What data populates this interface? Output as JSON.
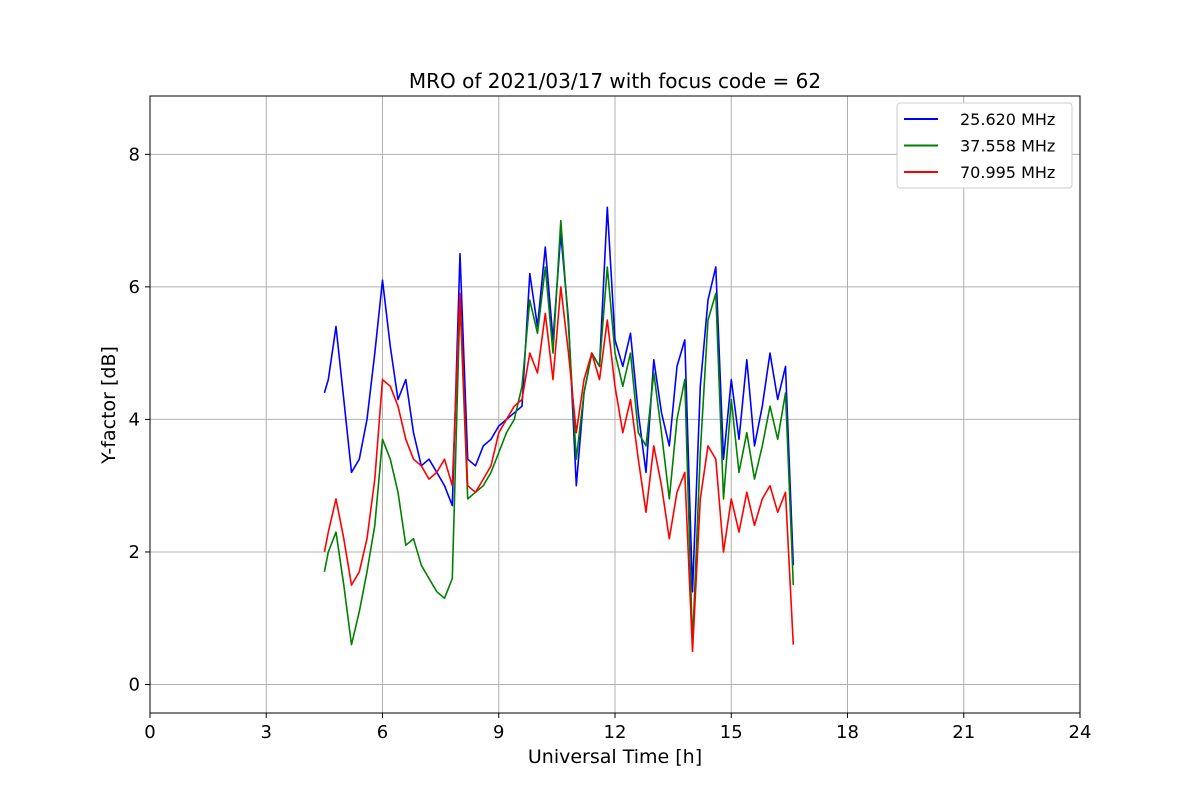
{
  "chart_data": {
    "type": "line",
    "title": "MRO of 2021/03/17 with focus code = 62",
    "xlabel": "Universal Time [h]",
    "ylabel": "Y-factor [dB]",
    "xlim": [
      0,
      24
    ],
    "ylim": [
      -0.43,
      8.88
    ],
    "xticks": [
      0,
      3,
      6,
      9,
      12,
      15,
      18,
      21,
      24
    ],
    "yticks": [
      0,
      2,
      4,
      6,
      8
    ],
    "grid": true,
    "legend_position": "top-right",
    "series": [
      {
        "name": "25.620 MHz",
        "color": "#0000ff",
        "x": [
          4.5,
          4.6,
          4.8,
          5.0,
          5.2,
          5.4,
          5.6,
          5.8,
          6.0,
          6.2,
          6.4,
          6.6,
          6.8,
          7.0,
          7.2,
          7.4,
          7.6,
          7.8,
          8.0,
          8.2,
          8.4,
          8.6,
          8.8,
          9.0,
          9.2,
          9.4,
          9.6,
          9.8,
          10.0,
          10.2,
          10.4,
          10.6,
          10.8,
          11.0,
          11.2,
          11.4,
          11.6,
          11.8,
          12.0,
          12.2,
          12.4,
          12.6,
          12.8,
          13.0,
          13.2,
          13.4,
          13.6,
          13.8,
          14.0,
          14.2,
          14.4,
          14.6,
          14.8,
          15.0,
          15.2,
          15.4,
          15.6,
          15.8,
          16.0,
          16.2,
          16.4,
          16.6
        ],
        "y": [
          4.4,
          4.6,
          5.4,
          4.3,
          3.2,
          3.4,
          4.0,
          5.0,
          6.1,
          5.1,
          4.3,
          4.6,
          3.8,
          3.3,
          3.4,
          3.2,
          3.0,
          2.7,
          6.5,
          3.4,
          3.3,
          3.6,
          3.7,
          3.9,
          4.0,
          4.1,
          4.2,
          6.2,
          5.4,
          6.6,
          5.2,
          6.8,
          5.5,
          3.0,
          4.4,
          5.0,
          4.8,
          7.2,
          5.2,
          4.8,
          5.3,
          4.1,
          3.2,
          4.9,
          4.1,
          3.6,
          4.8,
          5.2,
          1.4,
          4.5,
          5.8,
          6.3,
          3.4,
          4.6,
          3.7,
          4.9,
          3.6,
          4.2,
          5.0,
          4.3,
          4.8,
          1.8
        ]
      },
      {
        "name": "37.558 MHz",
        "color": "#008000",
        "x": [
          4.5,
          4.6,
          4.8,
          5.0,
          5.2,
          5.4,
          5.6,
          5.8,
          6.0,
          6.2,
          6.4,
          6.6,
          6.8,
          7.0,
          7.2,
          7.4,
          7.6,
          7.8,
          8.0,
          8.2,
          8.4,
          8.6,
          8.8,
          9.0,
          9.2,
          9.4,
          9.6,
          9.8,
          10.0,
          10.2,
          10.4,
          10.6,
          10.8,
          11.0,
          11.2,
          11.4,
          11.6,
          11.8,
          12.0,
          12.2,
          12.4,
          12.6,
          12.8,
          13.0,
          13.2,
          13.4,
          13.6,
          13.8,
          14.0,
          14.2,
          14.4,
          14.6,
          14.8,
          15.0,
          15.2,
          15.4,
          15.6,
          15.8,
          16.0,
          16.2,
          16.4,
          16.6
        ],
        "y": [
          1.7,
          2.0,
          2.3,
          1.5,
          0.6,
          1.1,
          1.7,
          2.4,
          3.7,
          3.4,
          2.9,
          2.1,
          2.2,
          1.8,
          1.6,
          1.4,
          1.3,
          1.6,
          5.8,
          2.8,
          2.9,
          3.0,
          3.2,
          3.5,
          3.8,
          4.0,
          4.5,
          5.8,
          5.3,
          6.3,
          5.0,
          7.0,
          5.4,
          3.4,
          4.4,
          5.0,
          4.8,
          6.3,
          5.0,
          4.5,
          5.0,
          3.8,
          3.6,
          4.7,
          3.8,
          2.8,
          4.0,
          4.6,
          0.6,
          3.5,
          5.5,
          5.9,
          2.8,
          4.3,
          3.2,
          3.8,
          3.1,
          3.6,
          4.2,
          3.7,
          4.4,
          1.5
        ]
      },
      {
        "name": "70.995 MHz",
        "color": "#ff0000",
        "x": [
          4.5,
          4.6,
          4.8,
          5.0,
          5.2,
          5.4,
          5.6,
          5.8,
          6.0,
          6.2,
          6.4,
          6.6,
          6.8,
          7.0,
          7.2,
          7.4,
          7.6,
          7.8,
          8.0,
          8.2,
          8.4,
          8.6,
          8.8,
          9.0,
          9.2,
          9.4,
          9.6,
          9.8,
          10.0,
          10.2,
          10.4,
          10.6,
          10.8,
          11.0,
          11.2,
          11.4,
          11.6,
          11.8,
          12.0,
          12.2,
          12.4,
          12.6,
          12.8,
          13.0,
          13.2,
          13.4,
          13.6,
          13.8,
          14.0,
          14.2,
          14.4,
          14.6,
          14.8,
          15.0,
          15.2,
          15.4,
          15.6,
          15.8,
          16.0,
          16.2,
          16.4,
          16.6
        ],
        "y": [
          2.0,
          2.3,
          2.8,
          2.2,
          1.5,
          1.7,
          2.2,
          3.1,
          4.6,
          4.5,
          4.2,
          3.7,
          3.4,
          3.3,
          3.1,
          3.2,
          3.4,
          3.0,
          5.9,
          3.0,
          2.9,
          3.1,
          3.3,
          3.8,
          4.0,
          4.2,
          4.3,
          5.0,
          4.7,
          5.6,
          4.6,
          6.0,
          5.0,
          3.8,
          4.6,
          5.0,
          4.6,
          5.5,
          4.5,
          3.8,
          4.3,
          3.4,
          2.6,
          3.6,
          3.0,
          2.2,
          2.9,
          3.2,
          0.5,
          2.8,
          3.6,
          3.4,
          2.0,
          2.8,
          2.3,
          2.9,
          2.4,
          2.8,
          3.0,
          2.6,
          2.9,
          0.6
        ]
      }
    ]
  }
}
